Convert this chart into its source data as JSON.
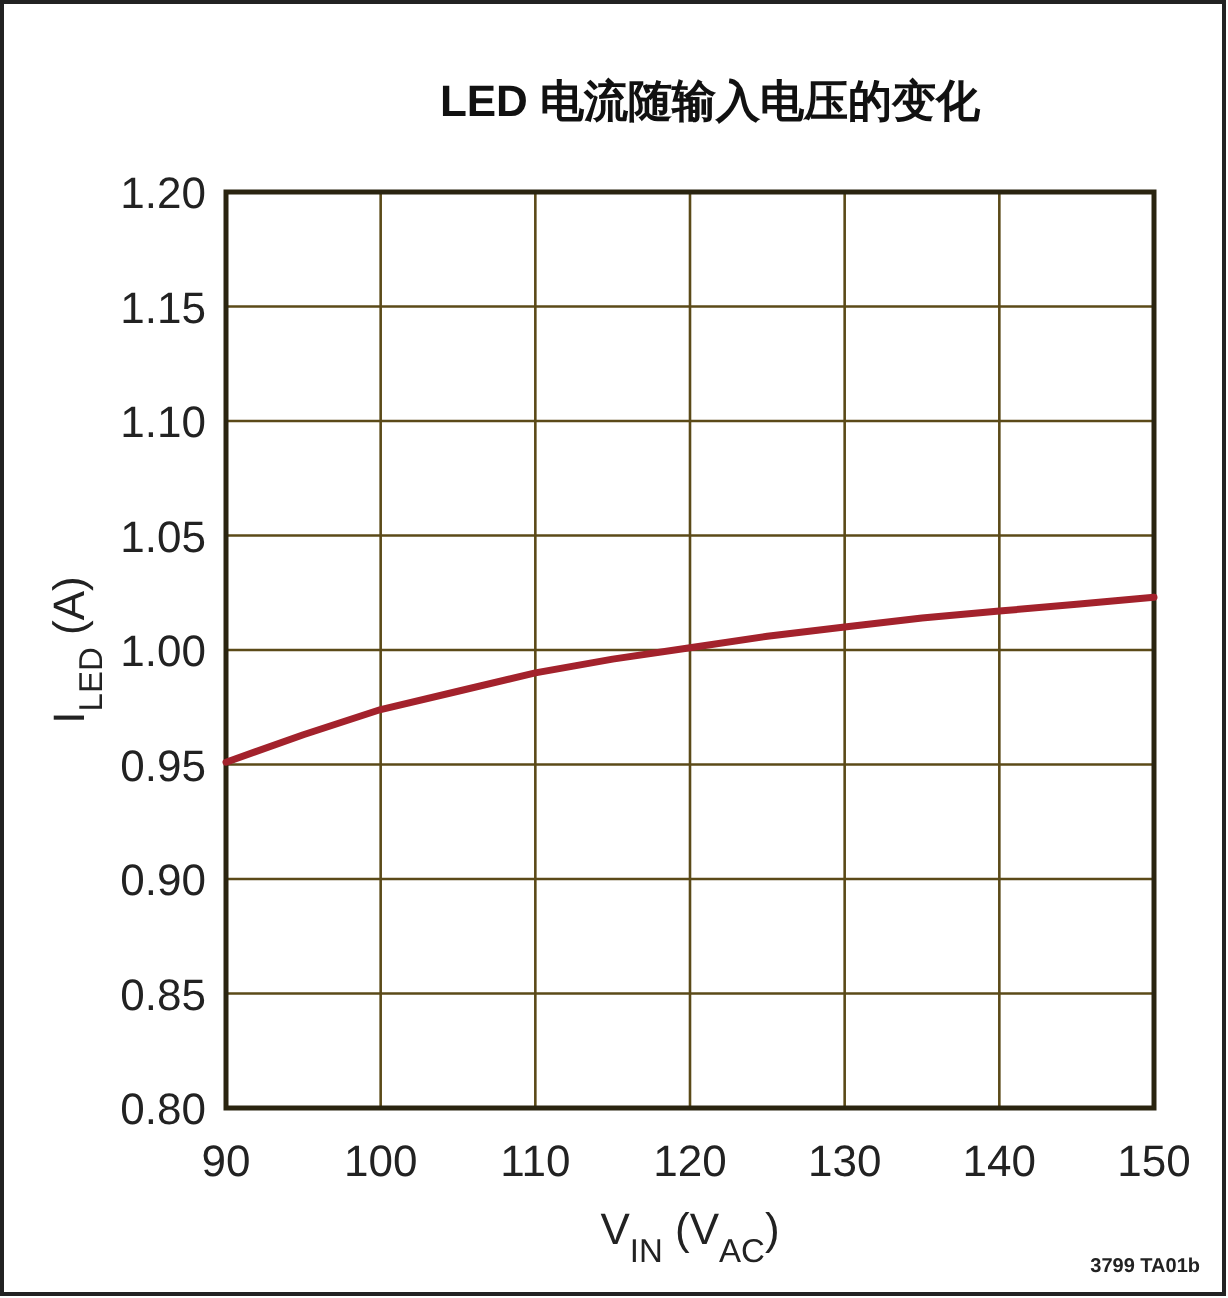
{
  "chart_data": {
    "type": "line",
    "title": "LED  电流随输入电压的变化",
    "xlabel": "V$_{IN}$ (V$_{AC}$)",
    "ylabel": "I$_{LED}$ (A)",
    "annotations": [
      "3799 TA01b"
    ],
    "x": [
      90,
      95,
      100,
      105,
      110,
      115,
      120,
      125,
      130,
      135,
      140,
      145,
      150
    ],
    "series": [
      {
        "color": "#a3222c",
        "values": [
          0.951,
          0.963,
          0.974,
          0.982,
          0.99,
          0.996,
          1.001,
          1.006,
          1.01,
          1.014,
          1.017,
          1.02,
          1.023
        ]
      }
    ],
    "xlim": [
      90,
      150
    ],
    "xticks": [
      90,
      100,
      110,
      120,
      130,
      140,
      150
    ],
    "ylim": [
      0.8,
      1.2
    ],
    "yticks": [
      {
        "value": 0.8,
        "label": "0.80"
      },
      {
        "value": 0.85,
        "label": "0.85"
      },
      {
        "value": 0.9,
        "label": "0.90"
      },
      {
        "value": 0.95,
        "label": "0.95"
      },
      {
        "value": 1.0,
        "label": "1.00"
      },
      {
        "value": 1.05,
        "label": "1.05"
      },
      {
        "value": 1.1,
        "label": "1.10"
      },
      {
        "value": 1.15,
        "label": "1.15"
      },
      {
        "value": 1.2,
        "label": "1.20"
      }
    ],
    "grid": true,
    "marker": "none",
    "line_style": "solid"
  }
}
